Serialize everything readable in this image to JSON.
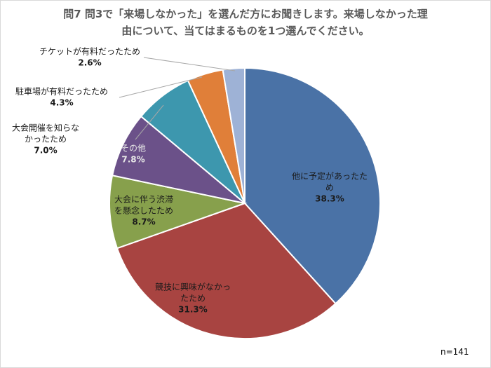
{
  "title": {
    "line1": "問7  問3で「来場しなかった」を選んだ方にお聞きします。来場しなかった理",
    "line2": "由について、当てはまるものを1つ選んでください。"
  },
  "sample_size": "n=141",
  "chart_data": {
    "type": "pie",
    "title": "問7  問3で「来場しなかった」を選んだ方にお聞きします。来場しなかった理由について、当てはまるものを1つ選んでください。",
    "start": "12 o'clock, clockwise",
    "slices": [
      {
        "lines": [
          "他に予定があったた",
          "め"
        ],
        "pct_text": "38.3%",
        "value": 38.3,
        "color": "#4a72a6",
        "text_color": "#1a1a1a",
        "placement": "inside"
      },
      {
        "lines": [
          "競技に興味がなかっ",
          "たため"
        ],
        "pct_text": "31.3%",
        "value": 31.3,
        "color": "#a84441",
        "text_color": "#1a1a1a",
        "placement": "inside"
      },
      {
        "lines": [
          "大会に伴う渋滞",
          "を懸念したため"
        ],
        "pct_text": "8.7%",
        "value": 8.7,
        "color": "#87a04c",
        "text_color": "#1a1a1a",
        "placement": "inside"
      },
      {
        "lines": [
          "その他"
        ],
        "pct_text": "7.8%",
        "value": 7.8,
        "color": "#6b5189",
        "text_color": "#e6e6e6",
        "placement": "inside"
      },
      {
        "lines": [
          "大会開催を知らな",
          "かったため"
        ],
        "pct_text": "7.0%",
        "value": 7.0,
        "color": "#3d97ae",
        "text_color": "#1a1a1a",
        "placement": "outside"
      },
      {
        "lines": [
          "駐車場が有料だったため"
        ],
        "pct_text": "4.3%",
        "value": 4.3,
        "color": "#e07f39",
        "text_color": "#1a1a1a",
        "placement": "outside"
      },
      {
        "lines": [
          "チケットが有料だったため"
        ],
        "pct_text": "2.6%",
        "value": 2.6,
        "color": "#9eb2d6",
        "text_color": "#1a1a1a",
        "placement": "outside"
      }
    ]
  }
}
